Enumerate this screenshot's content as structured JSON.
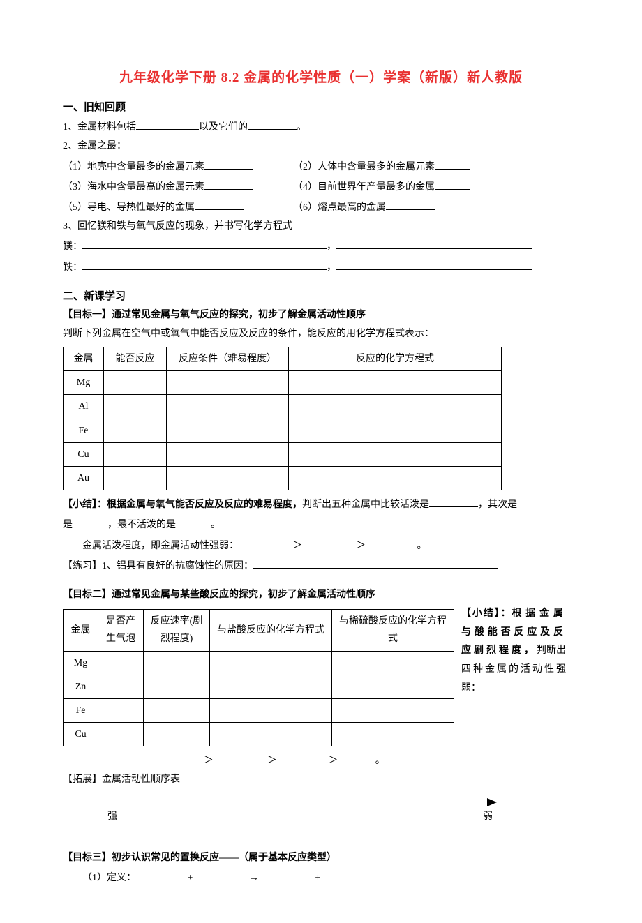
{
  "title": "九年级化学下册 8.2 金属的化学性质（一）学案（新版）新人教版",
  "sec1": {
    "head": "一、旧知回顾",
    "q1a": "1、金属材料包括",
    "q1b": "以及它们的",
    "q1c": "。",
    "q2": "2、金属之最：",
    "i1l": "（1）地壳中含量最多的金属元素",
    "i2r": "（2）人体中含量最多的金属元素",
    "i3l": "（3）海水中含量最高的金属元素",
    "i4r": "（4）目前世界年产量最多的金属",
    "i5l": "（5）导电、导热性最好的金属",
    "i6r": "（6）熔点最高的金属",
    "q3": "3、回忆镁和铁与氧气反应的现象，并书写化学方程式",
    "mg": "镁：",
    "fe": "铁：",
    "comma": "，"
  },
  "sec2": {
    "head": "二、新课学习",
    "goal1": "【目标一】通过常见金属与氧气反应的探究，初步了解金属活动性顺序",
    "goal1_sub": "判断下列金属在空气中或氧气中能否反应及反应的条件，能反应的用化学方程式表示：",
    "t1": {
      "h": [
        "金属",
        "能否反应",
        "反应条件（难易程度）",
        "反应的化学方程式"
      ],
      "rows": [
        "Mg",
        "Al",
        "Fe",
        "Cu",
        "Au"
      ]
    },
    "sum1a": "【小结】：",
    "sum1b": "根据金属与氧气能否反应及反应的难易程度，",
    "sum1c": "判断出五种金属中比较活泼是",
    "sum1d": "，其次是",
    "sum1e": "，最不活泼的是",
    "sum1f": "。",
    "act": "金属活泼程度，即金属活动性强弱：",
    "gt": "＞",
    "dot": "。",
    "prac": "【练习】1、铝具有良好的抗腐蚀性的原因：",
    "goal2": "【目标二】通过常见金属与某些酸反应的探究，初步了解金属活动性顺序",
    "t2": {
      "h": [
        "金属",
        "是否产生气泡",
        "反应速率(剧烈程度)",
        "与盐酸反应的化学方程式",
        "与稀硫酸反应的化学方程式"
      ],
      "rows": [
        "Mg",
        "Zn",
        "Fe",
        "Cu"
      ]
    },
    "side": {
      "a": "【小结】：",
      "b": "根据金属与酸能否反应及反应剧烈程度，",
      "c": "判断出四种金属的活动性强弱："
    },
    "ext": "【拓展】金属活动性顺序表",
    "strong": "强",
    "weak": "弱",
    "goal3": "【目标三】初步认识常见的置换反应——（属于基本反应类型）",
    "def": "（1）定义：",
    "plus": "+",
    "arrow": "→"
  }
}
